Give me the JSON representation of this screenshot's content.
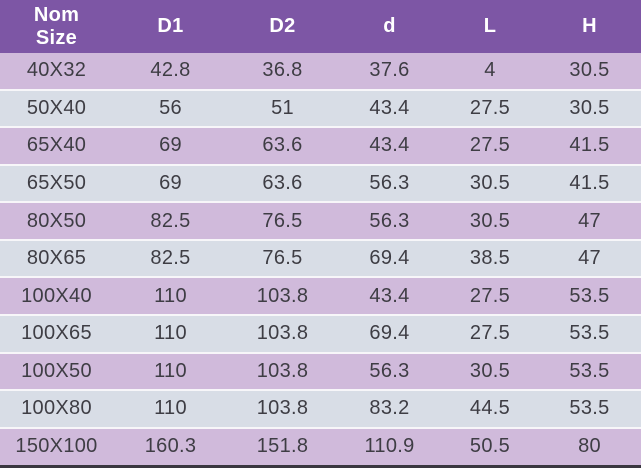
{
  "table": {
    "title": "pipe-fitting-dimensions",
    "columns": [
      {
        "key": "nom-size",
        "label": "Nom\nSize"
      },
      {
        "key": "d1",
        "label": "D1"
      },
      {
        "key": "d2",
        "label": "D2"
      },
      {
        "key": "d",
        "label": "d"
      },
      {
        "key": "l",
        "label": "L"
      },
      {
        "key": "h",
        "label": "H"
      }
    ],
    "rows": [
      [
        "40X32",
        "42.8",
        "36.8",
        "37.6",
        "4",
        "30.5"
      ],
      [
        "50X40",
        "56",
        "51",
        "43.4",
        "27.5",
        "30.5"
      ],
      [
        "65X40",
        "69",
        "63.6",
        "43.4",
        "27.5",
        "41.5"
      ],
      [
        "65X50",
        "69",
        "63.6",
        "56.3",
        "30.5",
        "41.5"
      ],
      [
        "80X50",
        "82.5",
        "76.5",
        "56.3",
        "30.5",
        "47"
      ],
      [
        "80X65",
        "82.5",
        "76.5",
        "69.4",
        "38.5",
        "47"
      ],
      [
        "100X40",
        "110",
        "103.8",
        "43.4",
        "27.5",
        "53.5"
      ],
      [
        "100X65",
        "110",
        "103.8",
        "69.4",
        "27.5",
        "53.5"
      ],
      [
        "100X50",
        "110",
        "103.8",
        "56.3",
        "30.5",
        "53.5"
      ],
      [
        "100X80",
        "110",
        "103.8",
        "83.2",
        "44.5",
        "53.5"
      ],
      [
        "150X100",
        "160.3",
        "151.8",
        "110.9",
        "50.5",
        "80"
      ]
    ]
  },
  "colors": {
    "header_background": "#7d56a5",
    "header_text": "#ffffff",
    "row_lavender": "#d0badb",
    "row_gray": "#d8dde6",
    "row_separator": "#f7f6f9",
    "bottom_border": "#3a3740",
    "body_text": "#3e3d44"
  }
}
